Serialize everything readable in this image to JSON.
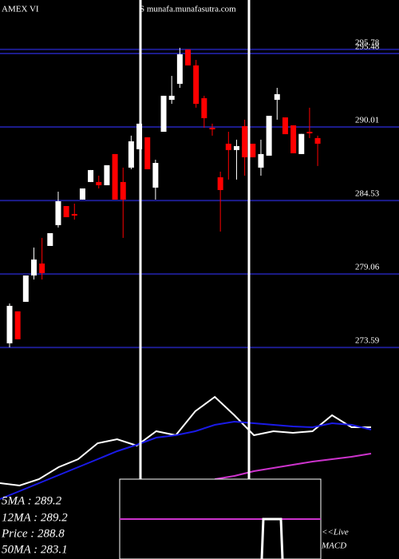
{
  "chart_data": [
    {
      "type": "candlestick",
      "title": "AMEX  VI",
      "subtitle": "S munafa.munafasutra.com",
      "open": [
        273.9,
        276.28,
        276.99,
        278.95,
        279.84,
        281.15,
        282.7,
        284.12,
        283.53,
        284.6,
        285.91,
        285.91,
        285.67,
        287.99,
        285.91,
        286.98,
        288.35,
        289.24,
        285.49,
        289.65,
        292.03,
        293.22,
        295.78,
        294.59,
        292.15,
        289.95,
        286.26,
        288.76,
        288.29,
        290.07,
        288.76,
        286.98,
        287.87,
        292.03,
        290.72,
        290.13,
        287.99,
        289.65,
        289.18
      ],
      "high": [
        276.87,
        276.28,
        278.95,
        281.03,
        281.75,
        282.1,
        285.19,
        284.12,
        284.3,
        285.43,
        286.8,
        286.38,
        287.16,
        287.99,
        286.98,
        289.36,
        290.25,
        289.24,
        287.57,
        292.33,
        293.81,
        295.9,
        295.78,
        295.0,
        292.33,
        290.25,
        286.68,
        289.65,
        289.06,
        290.55,
        288.76,
        289.06,
        290.84,
        292.92,
        290.72,
        290.13,
        289.49,
        291.44,
        289.36
      ],
      "low": [
        273.6,
        274.2,
        276.99,
        278.65,
        278.65,
        281.15,
        282.52,
        283.29,
        283.11,
        284.6,
        285.91,
        285.43,
        285.67,
        284.6,
        281.75,
        286.86,
        288.35,
        286.86,
        284.6,
        289.65,
        291.73,
        292.92,
        294.59,
        291.44,
        289.95,
        289.36,
        282.22,
        286.09,
        286.09,
        286.38,
        287.75,
        286.38,
        287.87,
        290.55,
        289.47,
        288.05,
        287.99,
        289.18,
        287.1
      ],
      "close": [
        276.69,
        274.2,
        278.95,
        280.14,
        279.13,
        282.1,
        284.48,
        283.29,
        283.41,
        285.43,
        286.8,
        285.67,
        287.16,
        284.6,
        284.6,
        288.94,
        290.25,
        286.86,
        287.33,
        292.33,
        292.33,
        295.42,
        294.59,
        291.73,
        290.66,
        289.83,
        285.31,
        288.29,
        288.58,
        287.75,
        287.75,
        287.99,
        290.84,
        292.45,
        289.47,
        288.05,
        289.49,
        289.53,
        288.76
      ],
      "up_color": "#ffffff",
      "down_color": "#ff0000",
      "grid_color": "#1c1c8c",
      "ylim": [
        273.3,
        299.46
      ],
      "yticks": [
        295.78,
        295.48,
        290.01,
        284.53,
        279.06,
        273.59
      ]
    },
    {
      "type": "line",
      "series": [
        {
          "color": "#ffffff",
          "values": [
            275.9,
            275.4,
            276.75,
            279.27,
            280.96,
            284.33,
            285.18,
            283.83,
            286.86,
            286.02,
            291.08,
            294.11,
            290.24,
            286.02,
            286.86,
            286.53,
            286.86,
            290.24,
            287.71,
            287.71
          ]
        },
        {
          "color": "#1a1ae6",
          "values": [
            272.53,
            274.22,
            275.9,
            277.59,
            279.27,
            280.96,
            282.65,
            284.0,
            285.51,
            286.02,
            286.86,
            288.21,
            288.89,
            288.55,
            288.21,
            287.88,
            287.71,
            288.55,
            288.21,
            287.2
          ]
        },
        {
          "color": "#cc33cc",
          "values": [
            null,
            null,
            null,
            null,
            null,
            null,
            null,
            null,
            null,
            null,
            null,
            276.75,
            277.42,
            278.43,
            279.11,
            279.78,
            280.46,
            280.96,
            281.47,
            282.14
          ]
        }
      ],
      "ylim": [
        270,
        296.98
      ],
      "legend": [
        "5MA : 289.2",
        "12MA : 289.2",
        "Price : 288.8",
        "50MA : 283.1"
      ],
      "annotations": [
        "<<Live",
        "MACD"
      ]
    }
  ]
}
